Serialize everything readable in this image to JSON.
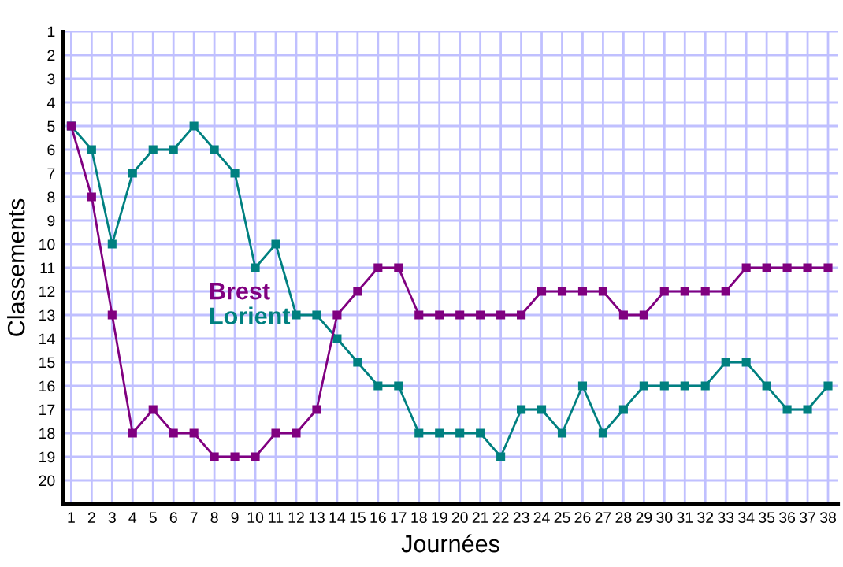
{
  "chart_data": {
    "type": "line",
    "xlabel": "Journées",
    "ylabel": "Classements",
    "x": [
      1,
      2,
      3,
      4,
      5,
      6,
      7,
      8,
      9,
      10,
      11,
      12,
      13,
      14,
      15,
      16,
      17,
      18,
      19,
      20,
      21,
      22,
      23,
      24,
      25,
      26,
      27,
      28,
      29,
      30,
      31,
      32,
      33,
      34,
      35,
      36,
      37,
      38
    ],
    "series": [
      {
        "name": "Brest",
        "color": "#800080",
        "values": [
          5,
          8,
          13,
          18,
          17,
          18,
          18,
          19,
          19,
          19,
          18,
          18,
          17,
          13,
          12,
          11,
          11,
          13,
          13,
          13,
          13,
          13,
          13,
          12,
          12,
          12,
          12,
          13,
          13,
          12,
          12,
          12,
          12,
          11,
          11,
          11,
          11,
          11
        ]
      },
      {
        "name": "Lorient",
        "color": "#008080",
        "values": [
          5,
          6,
          10,
          7,
          6,
          6,
          5,
          6,
          7,
          11,
          10,
          13,
          13,
          14,
          15,
          16,
          16,
          18,
          18,
          18,
          18,
          19,
          17,
          17,
          18,
          16,
          18,
          17,
          16,
          16,
          16,
          16,
          15,
          15,
          16,
          17,
          17,
          16
        ]
      }
    ],
    "xlim": [
      0.6,
      38.5
    ],
    "ylim": [
      21,
      1
    ],
    "xticks": [
      1,
      2,
      3,
      4,
      5,
      6,
      7,
      8,
      9,
      10,
      11,
      12,
      13,
      14,
      15,
      16,
      17,
      18,
      19,
      20,
      21,
      22,
      23,
      24,
      25,
      26,
      27,
      28,
      29,
      30,
      31,
      32,
      33,
      34,
      35,
      36,
      37,
      38
    ],
    "yticks": [
      1,
      2,
      3,
      4,
      5,
      6,
      7,
      8,
      9,
      10,
      11,
      12,
      13,
      14,
      15,
      16,
      17,
      18,
      19,
      20
    ],
    "grid": true,
    "legend": "left",
    "marker": "square",
    "line_style": "solid"
  }
}
